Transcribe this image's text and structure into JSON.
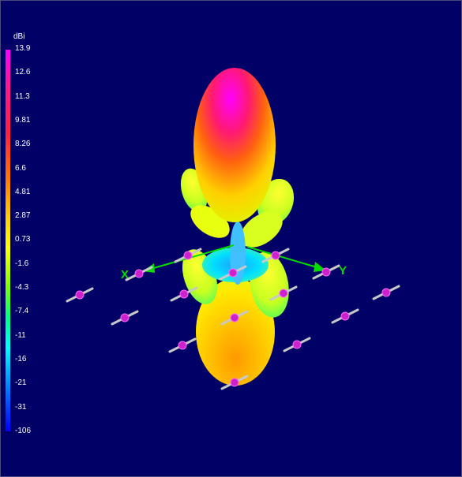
{
  "colorbar": {
    "unit": "dBi",
    "ticks": [
      "13.9",
      "12.6",
      "11.3",
      "9.81",
      "8.26",
      "6.6",
      "4.81",
      "2.87",
      "0.73",
      "-1.6",
      "-4.3",
      "-7.4",
      "-11",
      "-16",
      "-21",
      "-31",
      "-106"
    ]
  },
  "axes": {
    "x_label": "X",
    "y_label": "Y"
  },
  "colors": {
    "background": "#000066",
    "max": "#ff00ff",
    "min": "#0000ff",
    "axis": "#00dd00",
    "element": "#cc22cc"
  }
}
